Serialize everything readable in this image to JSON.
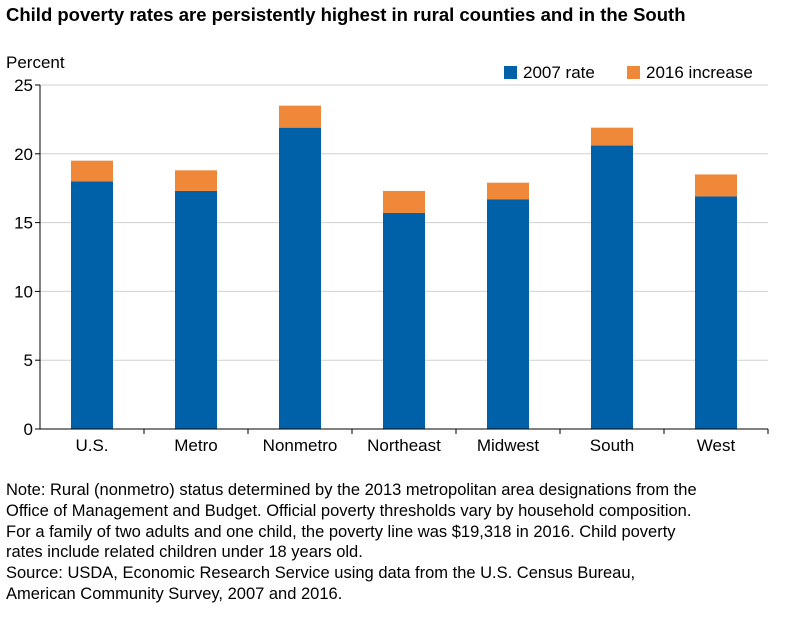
{
  "chart_data": {
    "type": "bar",
    "stacked": true,
    "title": "Child poverty rates are persistently highest in rural counties and in the South",
    "ylabel": "Percent",
    "xlabel": "",
    "ylim": [
      0,
      25
    ],
    "yticks": [
      0,
      5,
      10,
      15,
      20,
      25
    ],
    "grid": true,
    "legend_position": "top-right",
    "categories": [
      "U.S.",
      "Metro",
      "Nonmetro",
      "Northeast",
      "Midwest",
      "South",
      "West"
    ],
    "series": [
      {
        "name": "2007 rate",
        "color": "#0061a8",
        "values": [
          18.0,
          17.3,
          21.9,
          15.7,
          16.7,
          20.6,
          16.9
        ]
      },
      {
        "name": "2016 increase",
        "color": "#f0883a",
        "values": [
          1.5,
          1.5,
          1.6,
          1.6,
          1.2,
          1.3,
          1.6
        ]
      }
    ]
  },
  "notes": [
    "Note: Rural (nonmetro) status determined by the 2013 metropolitan area designations from the",
    "Office of Management and Budget. Official poverty thresholds vary by household composition.",
    "For a family of two adults and one child, the poverty line was $19,318 in 2016. Child poverty",
    "rates include related children under 18 years old.",
    "Source: USDA, Economic Research Service using data from the U.S. Census Bureau,",
    "American Community Survey, 2007 and 2016."
  ]
}
